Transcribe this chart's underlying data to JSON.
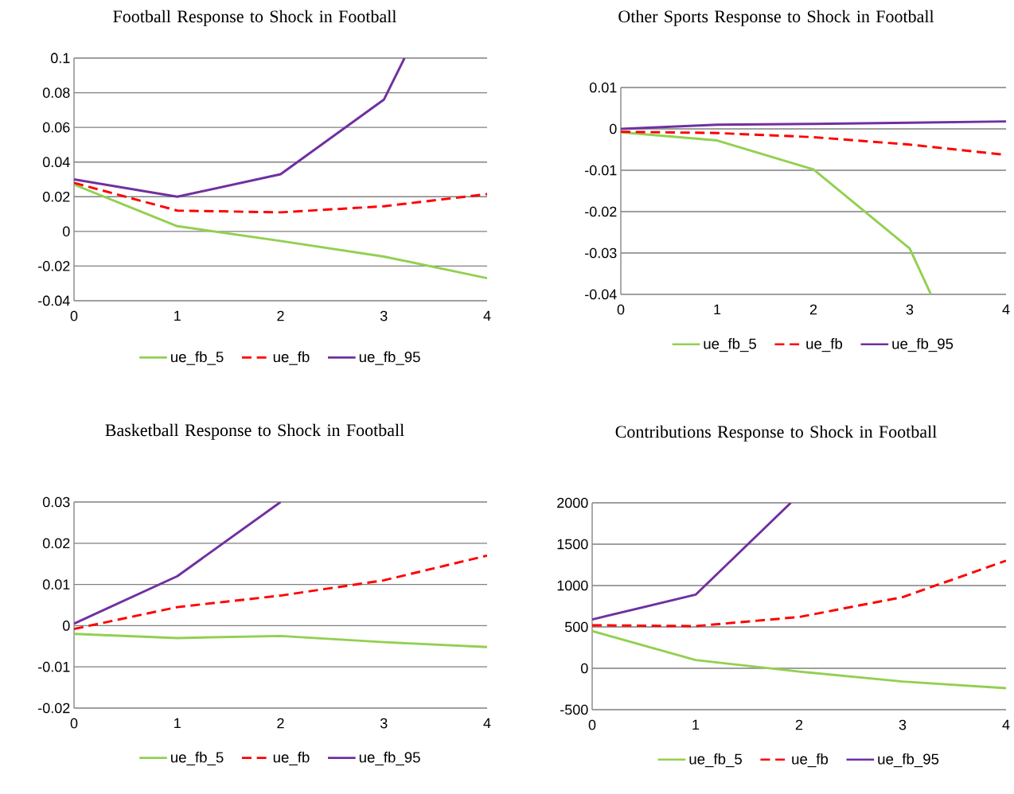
{
  "chart_data": [
    {
      "type": "line",
      "title": "Football Response to Shock in Football",
      "xlim": [
        0,
        4
      ],
      "xticks": [
        0,
        1,
        2,
        3,
        4
      ],
      "ylim": [
        -0.04,
        0.1
      ],
      "yticks": [
        -0.04,
        -0.02,
        0,
        0.02,
        0.04,
        0.06,
        0.08,
        0.1
      ],
      "grid": "y",
      "legend": "bottom",
      "series": [
        {
          "name": "ue_fb_5",
          "color": "#92d050",
          "line_style": "solid",
          "x": [
            0,
            1,
            2,
            3,
            4
          ],
          "values": [
            0.027,
            0.003,
            -0.0055,
            -0.0145,
            -0.027
          ]
        },
        {
          "name": "ue_fb",
          "color": "#ff0000",
          "line_style": "dashed",
          "x": [
            0,
            1,
            2,
            3,
            4
          ],
          "values": [
            0.028,
            0.012,
            0.011,
            0.0145,
            0.0215
          ]
        },
        {
          "name": "ue_fb_95",
          "color": "#7030a0",
          "line_style": "solid",
          "x": [
            0,
            1,
            2,
            3,
            3.2
          ],
          "values": [
            0.03,
            0.02,
            0.033,
            0.076,
            0.1
          ]
        }
      ]
    },
    {
      "type": "line",
      "title": "Other Sports Response to Shock in Football",
      "xlim": [
        0,
        4
      ],
      "xticks": [
        0,
        1,
        2,
        3,
        4
      ],
      "ylim": [
        -0.04,
        0.01
      ],
      "yticks": [
        -0.04,
        -0.03,
        -0.02,
        -0.01,
        0,
        0.01
      ],
      "grid": "y",
      "legend": "bottom",
      "series": [
        {
          "name": "ue_fb_5",
          "color": "#92d050",
          "line_style": "solid",
          "x": [
            0,
            1,
            2,
            3,
            3.22
          ],
          "values": [
            -0.0008,
            -0.0028,
            -0.0098,
            -0.0289,
            -0.04
          ]
        },
        {
          "name": "ue_fb",
          "color": "#ff0000",
          "line_style": "dashed",
          "x": [
            0,
            1,
            2,
            3,
            4
          ],
          "values": [
            -0.0007,
            -0.001,
            -0.002,
            -0.0038,
            -0.0063
          ]
        },
        {
          "name": "ue_fb_95",
          "color": "#7030a0",
          "line_style": "solid",
          "x": [
            0,
            1,
            2,
            3,
            4
          ],
          "values": [
            0.0,
            0.001,
            0.0012,
            0.0015,
            0.0018
          ]
        }
      ]
    },
    {
      "type": "line",
      "title": "Basketball Response to Shock in Football",
      "xlim": [
        0,
        4
      ],
      "xticks": [
        0,
        1,
        2,
        3,
        4
      ],
      "ylim": [
        -0.02,
        0.03
      ],
      "yticks": [
        -0.02,
        -0.01,
        0,
        0.01,
        0.02,
        0.03
      ],
      "grid": "y",
      "legend": "bottom",
      "series": [
        {
          "name": "ue_fb_5",
          "color": "#92d050",
          "line_style": "solid",
          "x": [
            0,
            1,
            2,
            3,
            4
          ],
          "values": [
            -0.002,
            -0.003,
            -0.0025,
            -0.004,
            -0.0052
          ]
        },
        {
          "name": "ue_fb",
          "color": "#ff0000",
          "line_style": "dashed",
          "x": [
            0,
            1,
            2,
            3,
            4
          ],
          "values": [
            -0.0008,
            0.0045,
            0.0073,
            0.011,
            0.017
          ]
        },
        {
          "name": "ue_fb_95",
          "color": "#7030a0",
          "line_style": "solid",
          "x": [
            0,
            1,
            2
          ],
          "values": [
            0.0005,
            0.012,
            0.03
          ]
        }
      ]
    },
    {
      "type": "line",
      "title": "Contributions Response to Shock in Football",
      "xlim": [
        0,
        4
      ],
      "xticks": [
        0,
        1,
        2,
        3,
        4
      ],
      "ylim": [
        -500,
        2000
      ],
      "yticks": [
        -500,
        0,
        500,
        1000,
        1500,
        2000
      ],
      "grid": "y",
      "legend": "bottom",
      "series": [
        {
          "name": "ue_fb_5",
          "color": "#92d050",
          "line_style": "solid",
          "x": [
            0,
            1,
            2,
            3,
            4
          ],
          "values": [
            450,
            100,
            -40,
            -160,
            -240
          ]
        },
        {
          "name": "ue_fb",
          "color": "#ff0000",
          "line_style": "dashed",
          "x": [
            0,
            1,
            2,
            3,
            4
          ],
          "values": [
            520,
            510,
            620,
            860,
            1300
          ]
        },
        {
          "name": "ue_fb_95",
          "color": "#7030a0",
          "line_style": "solid",
          "x": [
            0,
            1,
            1.92
          ],
          "values": [
            590,
            890,
            2000
          ]
        }
      ]
    }
  ]
}
